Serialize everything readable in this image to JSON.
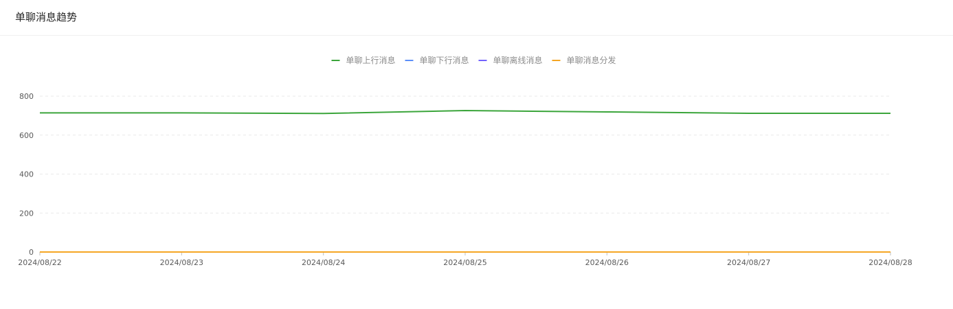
{
  "header": {
    "title": "单聊消息趋势"
  },
  "chart_data": {
    "type": "line",
    "title": "",
    "xlabel": "",
    "ylabel": "",
    "x": [
      "2024/08/22",
      "2024/08/23",
      "2024/08/24",
      "2024/08/25",
      "2024/08/26",
      "2024/08/27",
      "2024/08/28"
    ],
    "ylim": [
      0,
      800
    ],
    "yticks": [
      0,
      200,
      400,
      600,
      800
    ],
    "grid": true,
    "legend": "top-center",
    "series": [
      {
        "name": "单聊上行消息",
        "color": "#3ba53b",
        "values": [
          714,
          714,
          711,
          726,
          719,
          712,
          712
        ]
      },
      {
        "name": "单聊下行消息",
        "color": "#5b8ff9",
        "values": [
          0,
          0,
          0,
          0,
          0,
          0,
          0
        ]
      },
      {
        "name": "单聊离线消息",
        "color": "#7262fd",
        "values": [
          0,
          0,
          0,
          0,
          0,
          0,
          0
        ]
      },
      {
        "name": "单聊消息分发",
        "color": "#f5a623",
        "values": [
          0,
          0,
          0,
          0,
          0,
          0,
          0
        ]
      }
    ]
  }
}
